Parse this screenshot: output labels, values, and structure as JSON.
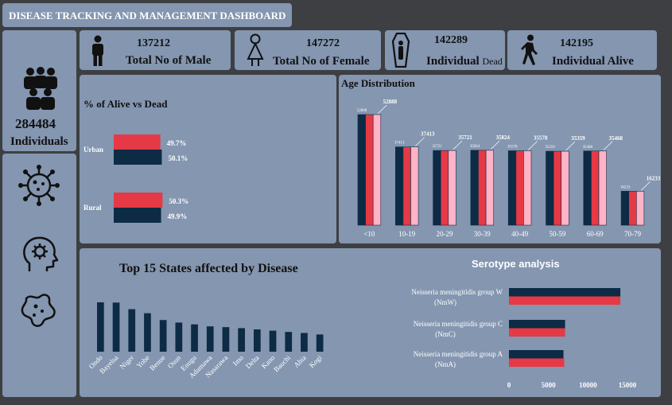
{
  "header": {
    "title": "DISEASE TRACKING AND MANAGEMENT DASHBOARD"
  },
  "kpis": {
    "male": {
      "value": "137212",
      "label": "Total No of Male",
      "icon": "male-icon"
    },
    "female": {
      "value": "147272",
      "label": "Total No of Female",
      "icon": "female-icon"
    },
    "dead": {
      "value": "142289",
      "label_main": "Individual",
      "label_sub": "Dead",
      "icon": "coffin-icon"
    },
    "alive": {
      "value": "142195",
      "label": "Individual Alive",
      "icon": "walking-icon"
    }
  },
  "sidebar": {
    "total": {
      "value": "284484",
      "label": "Individuals",
      "icon": "group-icon"
    },
    "icons": [
      "virus-icon",
      "head-gear-icon",
      "bacteria-icon"
    ]
  },
  "colors": {
    "navy": "#0d2b45",
    "red": "#e63946",
    "pink": "#ffb3c6",
    "panel": "#8496b0",
    "bg": "#3d3f42"
  },
  "chart_data": [
    {
      "type": "bar",
      "orientation": "horizontal",
      "title": "% of Alive vs Dead",
      "categories": [
        "Urban",
        "Rural"
      ],
      "series": [
        {
          "color": "#e63946",
          "values": [
            49.7,
            50.3
          ],
          "labels": [
            "49.7%",
            "50.3%"
          ]
        },
        {
          "color": "#0d2b45",
          "values": [
            50.1,
            49.9
          ],
          "labels": [
            "50.1%",
            "49.9%"
          ]
        }
      ]
    },
    {
      "type": "bar",
      "title": "Age Distribution",
      "categories": [
        "<10",
        "10-19",
        "20-29",
        "30-39",
        "40-49",
        "50-59",
        "60-69",
        "70-79"
      ],
      "values": [
        52888,
        37413,
        35721,
        35824,
        35578,
        35359,
        35468,
        16233
      ],
      "series_colors": [
        "#0d2b45",
        "#e63946",
        "#ffb3c6"
      ],
      "ylim": [
        0,
        60000
      ]
    },
    {
      "type": "bar",
      "title": "Top 15 States affected by Disease",
      "categories": [
        "Ondo",
        "Bayelsa",
        "Niger",
        "Yobe",
        "Benue",
        "Osun",
        "Enugu",
        "Adamawa",
        "Nasarawa",
        "Imo",
        "Delta",
        "Kano",
        "Bauchi",
        "Abia",
        "Kogi"
      ],
      "values": [
        19500,
        19400,
        16800,
        15200,
        12500,
        11500,
        10800,
        10000,
        9700,
        9300,
        8800,
        8300,
        7800,
        7400,
        6800
      ],
      "ylim": [
        0,
        22000
      ],
      "color": "#0d2b45"
    },
    {
      "type": "bar",
      "orientation": "horizontal",
      "title": "Serotype analysis",
      "categories": [
        "Neisseria meningitidis group W (NmW)",
        "Neisseria meningitidis group C (NmC)",
        "Neisseria meningitidis group A (NmA)"
      ],
      "category_lines": [
        [
          "Neisseria meningitidis group W",
          "(NmW)"
        ],
        [
          "Neisseria meningitidis group C",
          "(NmC)"
        ],
        [
          "Neisseria meningitidis group A",
          "(NmA)"
        ]
      ],
      "series": [
        {
          "color": "#0d2b45",
          "values": [
            14100,
            7100,
            6900
          ]
        },
        {
          "color": "#e63946",
          "values": [
            14100,
            7100,
            7000
          ]
        }
      ],
      "xticks": [
        0,
        5000,
        10000,
        15000
      ],
      "xtick_labels": [
        "0",
        "5000",
        "10000",
        "15000"
      ],
      "xlim": [
        0,
        15000
      ]
    }
  ]
}
